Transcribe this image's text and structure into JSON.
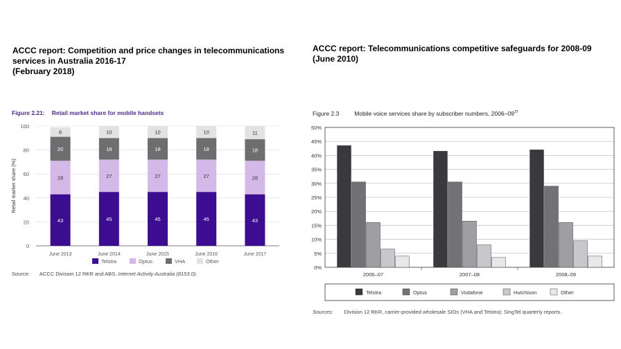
{
  "left_panel": {
    "heading_lines": [
      "ACCC report: Competition and price changes in telecommunications",
      "services in Australia 2016-17",
      "(February 2018)"
    ],
    "figure_number": "Figure 2.21:",
    "figure_title": "Retail market share for mobile handsets",
    "source_label": "Source:",
    "source_text": "ACCC Division 12 RKR and ABS, ",
    "source_italic": "Internet Activity Australia (8153.0).",
    "source_end": ""
  },
  "right_panel": {
    "heading_lines": [
      "ACCC report: Telecommunications competitive safeguards for 2008-09",
      "(June 2010)"
    ],
    "figure_number": "Figure 2.3",
    "figure_title": "Mobile voice services share by subscriber numbers, 2006–09",
    "figure_sup": "37",
    "source_label": "Sources:",
    "source_text": "Division 12 RKR, carrier-provided wholesale SIOs (VHA and Telstra); SingTel quarterly reports."
  },
  "chart_data": [
    {
      "type": "bar",
      "stacked": true,
      "title": "Retail market share for mobile handsets",
      "xlabel": "",
      "ylabel": "Retail market share (%)",
      "ylim": [
        0,
        100
      ],
      "yticks": [
        0,
        20,
        40,
        60,
        80,
        100
      ],
      "grid": true,
      "legend_position": "bottom",
      "categories": [
        "June 2013",
        "June 2014",
        "June 2015",
        "June 2016",
        "June 2017"
      ],
      "series": [
        {
          "name": "Telstra",
          "color": "#3d0d91",
          "label_color": "#ffffff",
          "values": [
            43,
            45,
            45,
            45,
            43
          ]
        },
        {
          "name": "Optus",
          "color": "#d4b8e8",
          "label_color": "#333333",
          "values": [
            28,
            27,
            27,
            27,
            28
          ]
        },
        {
          "name": "VHA",
          "color": "#6e6e70",
          "label_color": "#ffffff",
          "values": [
            20,
            18,
            18,
            18,
            18
          ]
        },
        {
          "name": "Other",
          "color": "#e2e2e2",
          "label_color": "#333333",
          "values": [
            8,
            10,
            10,
            10,
            11
          ]
        }
      ]
    },
    {
      "type": "bar",
      "stacked": false,
      "title": "Mobile voice services share by subscriber numbers, 2006–09",
      "xlabel": "",
      "ylabel": "",
      "ylim": [
        0,
        50
      ],
      "yticks": [
        "0%",
        "5%",
        "10%",
        "15%",
        "20%",
        "25%",
        "30%",
        "35%",
        "40%",
        "45%",
        "50%"
      ],
      "grid": true,
      "legend_position": "bottom",
      "categories": [
        "2006–07",
        "2007–08",
        "2008–09"
      ],
      "series": [
        {
          "name": "Telstra",
          "color": "#3a3a3e",
          "values": [
            43.5,
            41.5,
            42
          ]
        },
        {
          "name": "Optus",
          "color": "#717176",
          "values": [
            30.5,
            30.5,
            29
          ]
        },
        {
          "name": "Vodafone",
          "color": "#9e9ea3",
          "values": [
            16,
            16.5,
            16
          ]
        },
        {
          "name": "Hutchison",
          "color": "#c8c8cc",
          "values": [
            6.5,
            8,
            9.5
          ]
        },
        {
          "name": "Other",
          "color": "#e8e8ea",
          "values": [
            4,
            3.5,
            4
          ]
        }
      ]
    }
  ]
}
